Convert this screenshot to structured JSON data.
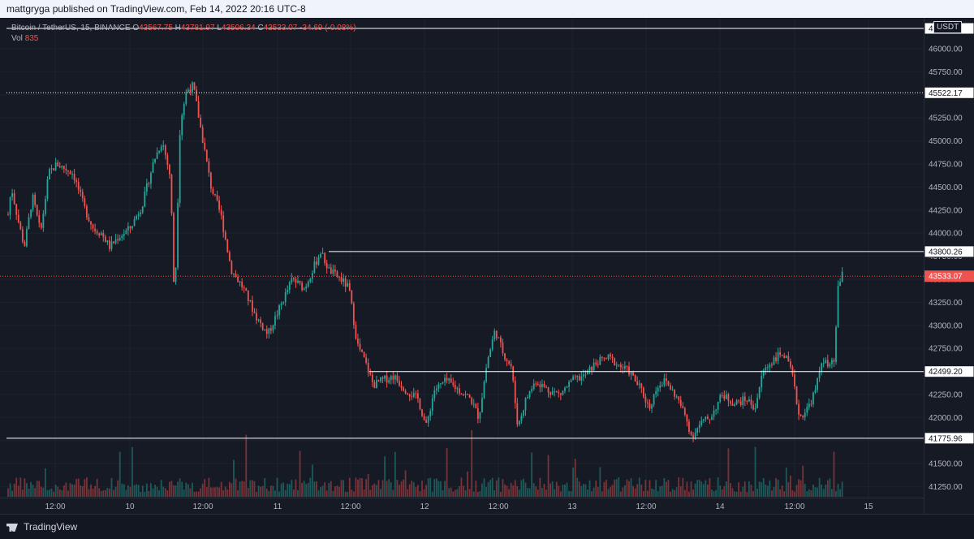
{
  "publish": {
    "text": "mattgryga published on TradingView.com, Feb 14, 2022 20:16 UTC-8"
  },
  "legend": {
    "symbol": "Bitcoin / TetherUS, 15, BINANCE",
    "o_label": "O",
    "o": "43567.75",
    "h_label": "H",
    "h": "43781.97",
    "l_label": "L",
    "l": "43506.34",
    "c_label": "C",
    "c": "43533.07",
    "change": "-34.69 (-0.08%)",
    "vol_label": "Vol",
    "vol": "835"
  },
  "currency": "USDT",
  "footer": {
    "brand": "TradingView"
  },
  "colors": {
    "up": "#26a69a",
    "down": "#ef5350",
    "level": "#ffffff",
    "last": "#ef5350"
  },
  "chart_data": {
    "type": "candlestick",
    "title": "Bitcoin / TetherUS, 15, BINANCE",
    "y_range": [
      41100,
      46300
    ],
    "y_ticks": [
      46000,
      45750,
      45500,
      45250,
      45000,
      44750,
      44500,
      44250,
      44000,
      43750,
      43500,
      43250,
      43000,
      42750,
      42500,
      42250,
      42000,
      41750,
      41500,
      41250
    ],
    "x_range": [
      "Feb 9 03:00",
      "Feb 15 06:00"
    ],
    "x_labels": [
      "12:00",
      "10",
      "12:00",
      "11",
      "12:00",
      "12",
      "12:00",
      "13",
      "12:00",
      "14",
      "12:00",
      "15"
    ],
    "horizontal_levels": [
      {
        "value": 46220,
        "label": "4",
        "style": "solid"
      },
      {
        "value": 45522.17,
        "label": "45522.17",
        "style": "dotted"
      },
      {
        "value": 43800.26,
        "label": "43800.26",
        "style": "solid"
      },
      {
        "value": 42499.2,
        "label": "42499.20",
        "style": "solid"
      },
      {
        "value": 41775.96,
        "label": "41775.96",
        "style": "solid"
      }
    ],
    "last_price": {
      "value": 43533.07,
      "label": "43533.07"
    },
    "price_path": [
      [
        0,
        44200
      ],
      [
        4,
        44500
      ],
      [
        12,
        44150
      ],
      [
        20,
        43850
      ],
      [
        30,
        44400
      ],
      [
        40,
        44000
      ],
      [
        50,
        44650
      ],
      [
        60,
        44750
      ],
      [
        70,
        44700
      ],
      [
        80,
        44650
      ],
      [
        95,
        44250
      ],
      [
        105,
        44050
      ],
      [
        115,
        44000
      ],
      [
        125,
        43850
      ],
      [
        135,
        43950
      ],
      [
        150,
        44050
      ],
      [
        165,
        44300
      ],
      [
        180,
        44800
      ],
      [
        190,
        45000
      ],
      [
        200,
        44600
      ],
      [
        205,
        43200
      ],
      [
        212,
        45200
      ],
      [
        220,
        45550
      ],
      [
        228,
        45600
      ],
      [
        236,
        45200
      ],
      [
        250,
        44500
      ],
      [
        262,
        44200
      ],
      [
        275,
        43600
      ],
      [
        290,
        43400
      ],
      [
        305,
        43100
      ],
      [
        320,
        42900
      ],
      [
        335,
        43200
      ],
      [
        350,
        43500
      ],
      [
        365,
        43400
      ],
      [
        375,
        43600
      ],
      [
        385,
        43800
      ],
      [
        395,
        43600
      ],
      [
        410,
        43500
      ],
      [
        420,
        43400
      ],
      [
        430,
        42800
      ],
      [
        440,
        42600
      ],
      [
        450,
        42350
      ],
      [
        460,
        42400
      ],
      [
        475,
        42450
      ],
      [
        490,
        42300
      ],
      [
        505,
        42200
      ],
      [
        515,
        41900
      ],
      [
        525,
        42300
      ],
      [
        540,
        42400
      ],
      [
        555,
        42300
      ],
      [
        570,
        42200
      ],
      [
        580,
        42000
      ],
      [
        590,
        42600
      ],
      [
        600,
        42950
      ],
      [
        610,
        42700
      ],
      [
        620,
        42550
      ],
      [
        628,
        41900
      ],
      [
        638,
        42200
      ],
      [
        650,
        42400
      ],
      [
        665,
        42300
      ],
      [
        680,
        42250
      ],
      [
        695,
        42400
      ],
      [
        710,
        42450
      ],
      [
        725,
        42600
      ],
      [
        740,
        42650
      ],
      [
        755,
        42550
      ],
      [
        765,
        42500
      ],
      [
        780,
        42300
      ],
      [
        790,
        42100
      ],
      [
        800,
        42350
      ],
      [
        810,
        42400
      ],
      [
        825,
        42200
      ],
      [
        835,
        42000
      ],
      [
        842,
        41800
      ],
      [
        855,
        41950
      ],
      [
        865,
        42000
      ],
      [
        880,
        42250
      ],
      [
        895,
        42150
      ],
      [
        910,
        42200
      ],
      [
        920,
        42100
      ],
      [
        930,
        42500
      ],
      [
        945,
        42650
      ],
      [
        955,
        42700
      ],
      [
        965,
        42500
      ],
      [
        975,
        42000
      ],
      [
        985,
        42100
      ],
      [
        995,
        42300
      ],
      [
        1003,
        42650
      ],
      [
        1010,
        42550
      ],
      [
        1018,
        42600
      ],
      [
        1022,
        43400
      ],
      [
        1030,
        43600
      ],
      [
        1040,
        43533
      ]
    ]
  }
}
